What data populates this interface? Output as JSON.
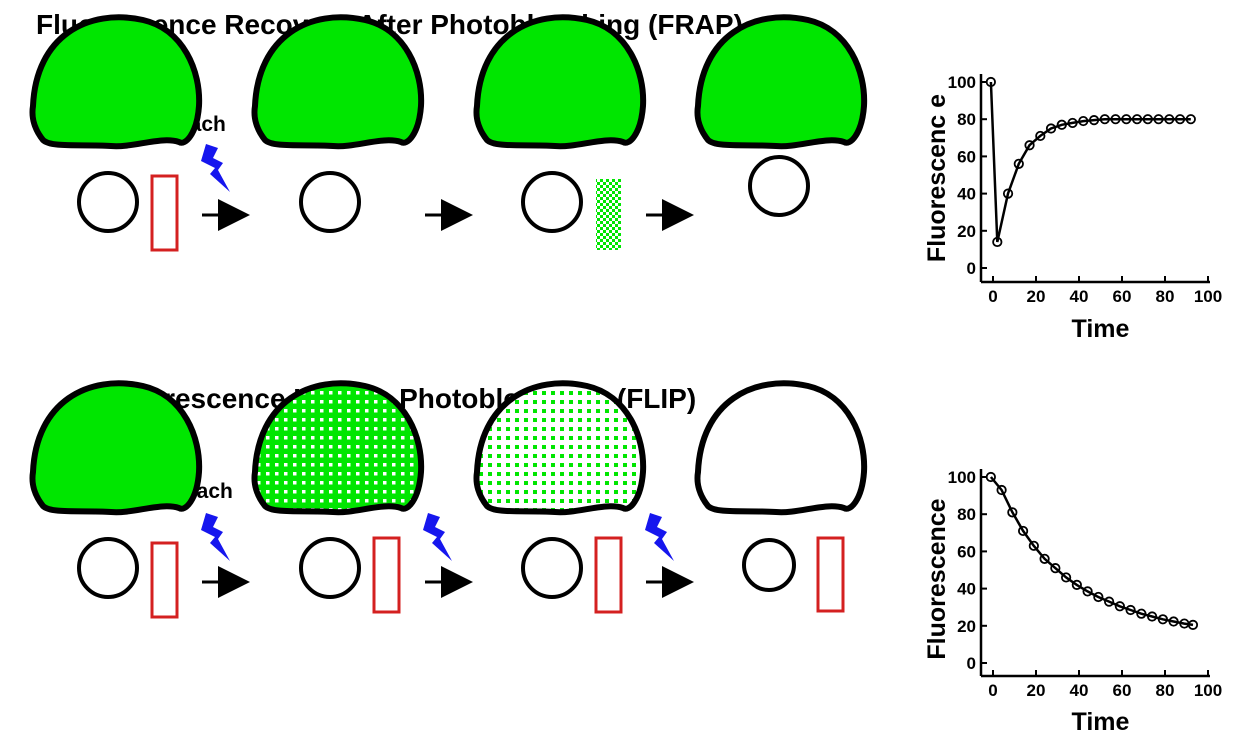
{
  "frap": {
    "title": "Fluorescence Recovery After Photobleaching (FRAP)",
    "bleach_label": "photobleach"
  },
  "flip": {
    "title": "Fluorescence Loss in   Photobleaching (FLIP)",
    "bleach_label": "photobleach"
  },
  "colors": {
    "green": "#00e600",
    "outline": "#000000",
    "roi": "#d42020",
    "bolt": "#1616ee"
  },
  "icons": [
    "lightning-bolt-icon",
    "arrow-right-icon"
  ],
  "chart_data": [
    {
      "type": "scatter",
      "id": "frap",
      "xlabel": "Time",
      "ylabel": "Fluorescenc e",
      "xlim": [
        -3,
        100
      ],
      "ylim": [
        0,
        100
      ],
      "x_ticks": [
        0,
        20,
        40,
        60,
        80,
        100
      ],
      "y_ticks": [
        0,
        20,
        40,
        60,
        80,
        100
      ],
      "fit_line": true,
      "points": [
        {
          "x": -1,
          "y": 100
        },
        {
          "x": 2,
          "y": 14
        },
        {
          "x": 7,
          "y": 40
        },
        {
          "x": 12,
          "y": 56
        },
        {
          "x": 17,
          "y": 66
        },
        {
          "x": 22,
          "y": 71
        },
        {
          "x": 27,
          "y": 75
        },
        {
          "x": 32,
          "y": 77
        },
        {
          "x": 37,
          "y": 78
        },
        {
          "x": 42,
          "y": 79
        },
        {
          "x": 47,
          "y": 79.5
        },
        {
          "x": 52,
          "y": 80
        },
        {
          "x": 57,
          "y": 80
        },
        {
          "x": 62,
          "y": 80
        },
        {
          "x": 67,
          "y": 80
        },
        {
          "x": 72,
          "y": 80
        },
        {
          "x": 77,
          "y": 80
        },
        {
          "x": 82,
          "y": 80
        },
        {
          "x": 87,
          "y": 80
        },
        {
          "x": 92,
          "y": 80
        }
      ]
    },
    {
      "type": "scatter",
      "id": "flip",
      "xlabel": "Time",
      "ylabel": "Fluorescence",
      "xlim": [
        -3,
        100
      ],
      "ylim": [
        0,
        100
      ],
      "x_ticks": [
        0,
        20,
        40,
        60,
        80,
        100
      ],
      "y_ticks": [
        0,
        20,
        40,
        60,
        80,
        100
      ],
      "fit_line": true,
      "points": [
        {
          "x": -1,
          "y": 100
        },
        {
          "x": 4,
          "y": 93
        },
        {
          "x": 9,
          "y": 81
        },
        {
          "x": 14,
          "y": 71
        },
        {
          "x": 19,
          "y": 63
        },
        {
          "x": 24,
          "y": 56
        },
        {
          "x": 29,
          "y": 51
        },
        {
          "x": 34,
          "y": 46
        },
        {
          "x": 39,
          "y": 42
        },
        {
          "x": 44,
          "y": 38.5
        },
        {
          "x": 49,
          "y": 35.5
        },
        {
          "x": 54,
          "y": 33
        },
        {
          "x": 59,
          "y": 30.5
        },
        {
          "x": 64,
          "y": 28.5
        },
        {
          "x": 69,
          "y": 26.5
        },
        {
          "x": 74,
          "y": 25
        },
        {
          "x": 79,
          "y": 23.5
        },
        {
          "x": 84,
          "y": 22.3
        },
        {
          "x": 89,
          "y": 21.2
        },
        {
          "x": 93,
          "y": 20.5
        }
      ]
    }
  ]
}
